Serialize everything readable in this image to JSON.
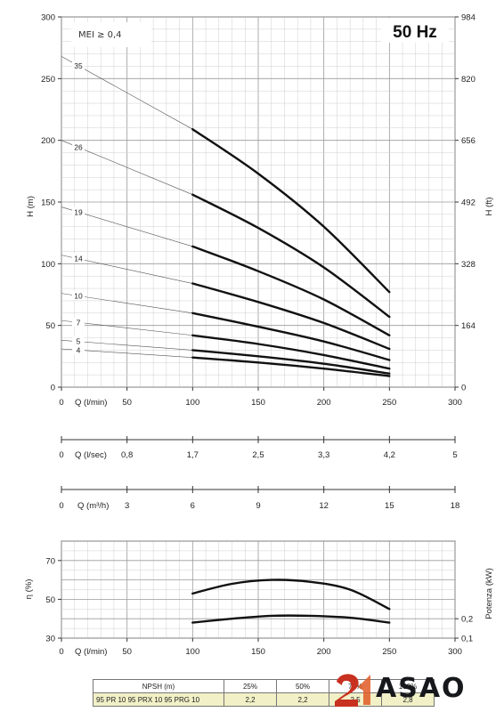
{
  "frequency_label": "50 Hz",
  "mei_label": "MEI ≥ 0,4",
  "npsh_table": {
    "header": [
      "NPSH (m)",
      "25%",
      "50%",
      "75%",
      "100%"
    ],
    "row": [
      "95 PR 10   95 PRX 10   95 PRG 10",
      "2,2",
      "2,2",
      "2,5",
      "2,8"
    ]
  },
  "logo": {
    "text": "ASAO",
    "colors": {
      "mark": "#c8301f",
      "text": "#16181c"
    }
  },
  "chart_data": [
    {
      "type": "line",
      "ylabel": "H (m)",
      "ylabel_right": "H (ft)",
      "xlabel": "Q (l/min)",
      "xlim": [
        0,
        300
      ],
      "ylim": [
        0,
        300
      ],
      "x_ticks": [
        0,
        50,
        100,
        150,
        200,
        250,
        300
      ],
      "y_ticks": [
        0,
        50,
        100,
        150,
        200,
        250,
        300
      ],
      "y_ticks_right": [
        "0",
        "164",
        "328",
        "492",
        "656",
        "820",
        "984"
      ],
      "grid": true,
      "operating_range": [
        100,
        250
      ],
      "series": [
        {
          "name": "35",
          "x": [
            0,
            100,
            150,
            200,
            250
          ],
          "y": [
            268,
            209,
            173,
            130,
            77
          ]
        },
        {
          "name": "26",
          "x": [
            0,
            100,
            150,
            200,
            250
          ],
          "y": [
            200,
            156,
            129,
            97,
            57
          ]
        },
        {
          "name": "19",
          "x": [
            0,
            100,
            150,
            200,
            250
          ],
          "y": [
            146,
            114,
            94,
            71,
            42
          ]
        },
        {
          "name": "14",
          "x": [
            0,
            100,
            150,
            200,
            250
          ],
          "y": [
            107,
            84,
            69,
            52,
            31
          ]
        },
        {
          "name": "10",
          "x": [
            0,
            100,
            150,
            200,
            250
          ],
          "y": [
            76,
            60,
            49,
            37,
            22
          ]
        },
        {
          "name": "7",
          "x": [
            0,
            100,
            150,
            200,
            250
          ],
          "y": [
            54,
            42,
            35,
            26,
            15
          ]
        },
        {
          "name": "5",
          "x": [
            0,
            100,
            150,
            200,
            250
          ],
          "y": [
            38,
            30,
            25,
            19,
            11
          ]
        },
        {
          "name": "4",
          "x": [
            0,
            100,
            150,
            200,
            250
          ],
          "y": [
            31,
            24,
            20,
            15,
            9
          ]
        }
      ]
    },
    {
      "type": "axis_scale",
      "xlabel": "Q (l/sec)",
      "tick_labels": [
        "0",
        "0,8",
        "1,7",
        "2,5",
        "3,3",
        "4,2",
        "5"
      ]
    },
    {
      "type": "axis_scale",
      "xlabel": "Q (m³/h)",
      "tick_labels": [
        "0",
        "3",
        "6",
        "9",
        "12",
        "15",
        "18"
      ]
    },
    {
      "type": "line",
      "ylabel": "η (%)",
      "ylabel_right": "Potenza (kW)",
      "xlabel": "Q (l/min)",
      "xlim": [
        0,
        300
      ],
      "ylim": [
        30,
        80
      ],
      "x_ticks": [
        0,
        50,
        100,
        150,
        200,
        250,
        300
      ],
      "y_ticks": [
        30,
        50,
        70
      ],
      "y_ticks_right": [
        "0,1",
        "0,2"
      ],
      "grid": true,
      "series": [
        {
          "x": [
            100,
            130,
            160,
            190,
            220,
            250
          ],
          "y": [
            53,
            58,
            60,
            59,
            55,
            45
          ]
        },
        {
          "x": [
            100,
            130,
            160,
            190,
            220,
            250
          ],
          "y": [
            38,
            40,
            41.5,
            41.5,
            40.5,
            38
          ]
        }
      ]
    }
  ]
}
